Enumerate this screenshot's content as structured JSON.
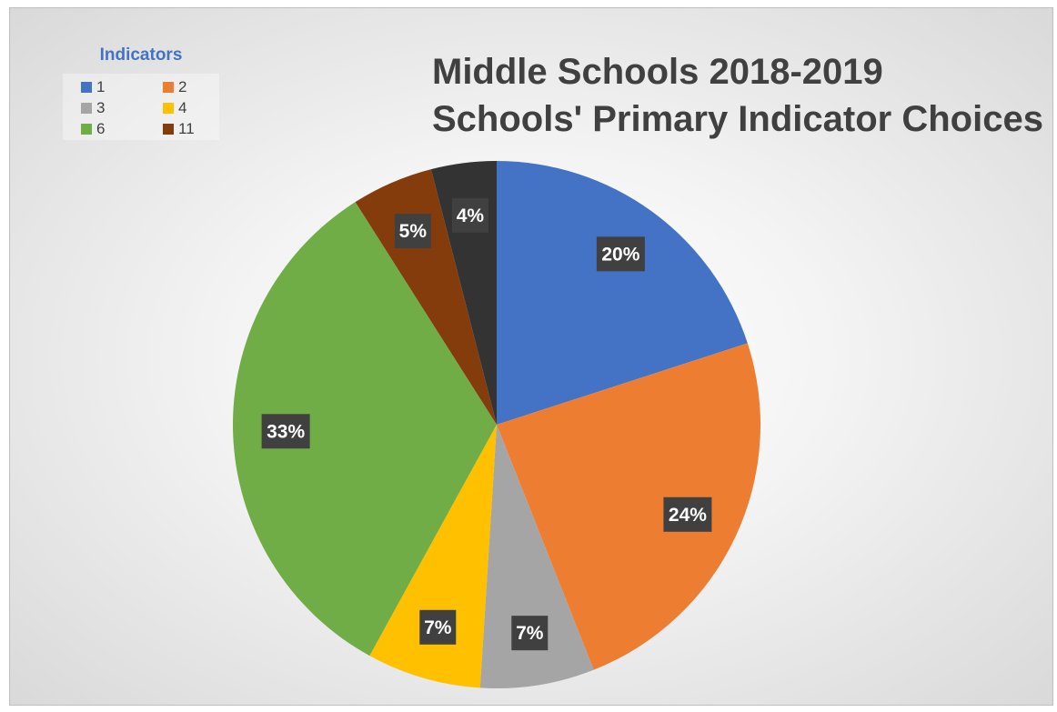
{
  "chart_data": {
    "type": "pie",
    "title": [
      "Middle Schools 2018-2019",
      "Schools' Primary Indicator Choices"
    ],
    "legend_title": "Indicators",
    "legend_position": "top-left",
    "categories": [
      "1",
      "2",
      "3",
      "4",
      "6",
      "11",
      ""
    ],
    "values": [
      20,
      24,
      7,
      7,
      33,
      5,
      4
    ],
    "labels": [
      "20%",
      "24%",
      "7%",
      "7%",
      "33%",
      "5%",
      "4%"
    ],
    "colors": [
      "#4472c4",
      "#ed7d31",
      "#a5a5a5",
      "#ffc000",
      "#70ad47",
      "#843c0c",
      "#333333"
    ],
    "legend": [
      {
        "label": "1",
        "color": "#4472c4"
      },
      {
        "label": "2",
        "color": "#ed7d31"
      },
      {
        "label": "3",
        "color": "#a5a5a5"
      },
      {
        "label": "4",
        "color": "#ffc000"
      },
      {
        "label": "6",
        "color": "#70ad47"
      },
      {
        "label": "11",
        "color": "#843c0c"
      }
    ]
  }
}
